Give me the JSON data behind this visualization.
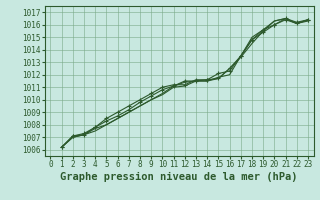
{
  "title": "Graphe pression niveau de la mer (hPa)",
  "xlim": [
    -0.5,
    23.5
  ],
  "ylim": [
    1005.5,
    1017.5
  ],
  "yticks": [
    1006,
    1007,
    1008,
    1009,
    1010,
    1011,
    1012,
    1013,
    1014,
    1015,
    1016,
    1017
  ],
  "xticks": [
    0,
    1,
    2,
    3,
    4,
    5,
    6,
    7,
    8,
    9,
    10,
    11,
    12,
    13,
    14,
    15,
    16,
    17,
    18,
    19,
    20,
    21,
    22,
    23
  ],
  "background_color": "#c8e8e0",
  "grid_color": "#7aaa88",
  "line_color": "#2d5a2d",
  "series": [
    [
      1006.2,
      1007.0,
      1007.2,
      1007.7,
      1008.0,
      1008.5,
      1009.0,
      1009.5,
      1010.0,
      1010.5,
      1011.1,
      1011.4,
      1011.5,
      1011.5,
      1011.7,
      1012.5,
      1013.4,
      1014.5,
      1015.5,
      1016.3,
      1016.5,
      1016.1,
      1016.3
    ],
    [
      1006.2,
      1007.0,
      1007.2,
      1007.5,
      1008.0,
      1008.5,
      1009.0,
      1009.5,
      1010.0,
      1010.4,
      1011.0,
      1011.1,
      1011.5,
      1011.5,
      1011.8,
      1012.0,
      1013.5,
      1015.0,
      1015.6,
      1016.3,
      1016.5,
      1016.1,
      1016.4
    ],
    [
      1006.2,
      1007.1,
      1007.2,
      1007.8,
      1008.3,
      1008.7,
      1009.2,
      1009.8,
      1010.3,
      1010.8,
      1011.1,
      1011.5,
      1011.5,
      1011.6,
      1012.1,
      1012.3,
      1013.5,
      1014.8,
      1015.4,
      1016.0,
      1016.4,
      1016.1,
      1016.4
    ],
    [
      1006.2,
      1007.1,
      1007.3,
      1007.8,
      1008.5,
      1009.0,
      1009.5,
      1010.0,
      1010.5,
      1011.0,
      1011.2,
      1011.2,
      1011.6,
      1011.6,
      1011.7,
      1012.5,
      1013.5,
      1014.8,
      1015.6,
      1016.0,
      1016.5,
      1016.2,
      1016.4
    ]
  ],
  "marker_series": [
    2,
    3
  ],
  "title_fontsize": 8,
  "tick_fontsize": 5.5,
  "xlabel_fontsize": 7.5
}
